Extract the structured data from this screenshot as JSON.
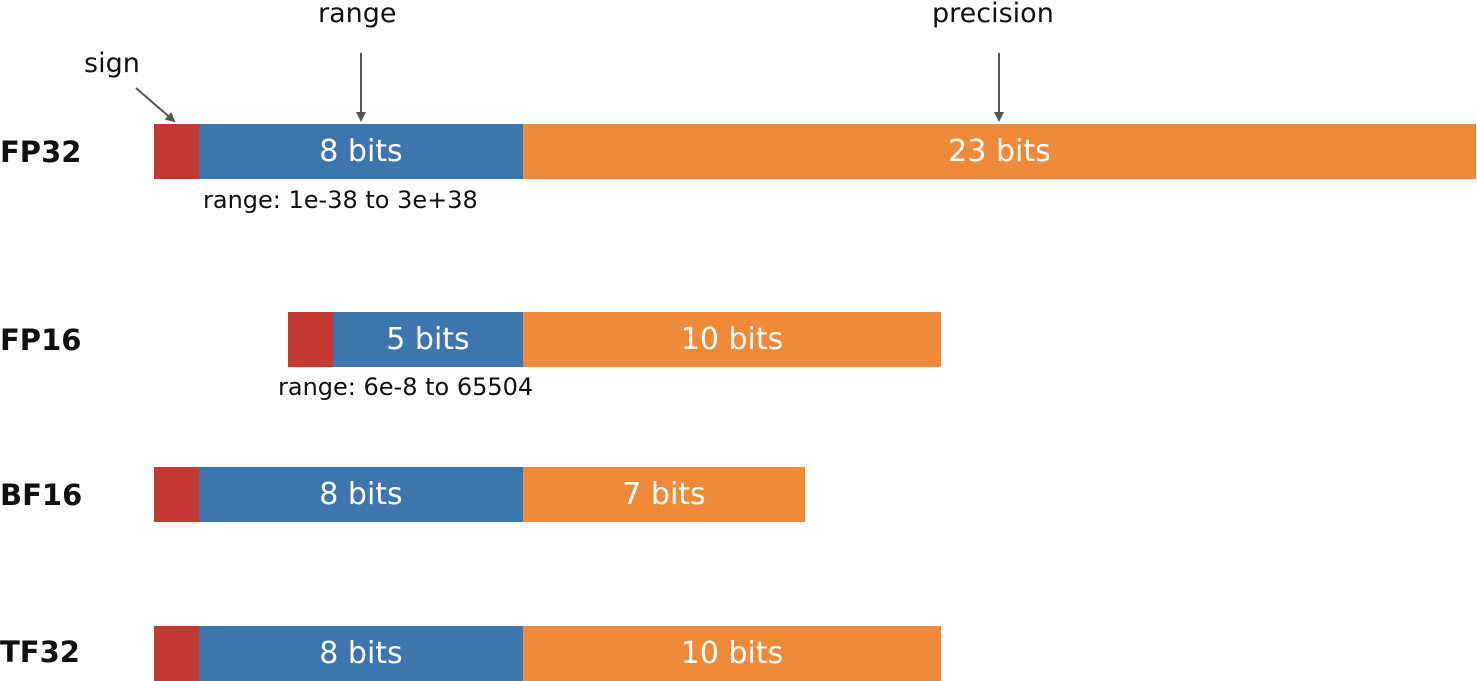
{
  "annotations": {
    "sign": "sign",
    "range": "range",
    "precision": "precision"
  },
  "colors": {
    "sign": "#c43a32",
    "exponent": "#3d76ae",
    "mantissa": "#ee8a39",
    "arrow": "#555555"
  },
  "formats": [
    {
      "name": "FP32",
      "exponent_label": "8 bits",
      "mantissa_label": "23 bits",
      "range_note": "range: 1e-38 to 3e+38"
    },
    {
      "name": "FP16",
      "exponent_label": "5 bits",
      "mantissa_label": "10 bits",
      "range_note": "range: 6e-8 to 65504"
    },
    {
      "name": "BF16",
      "exponent_label": "8 bits",
      "mantissa_label": "7 bits"
    },
    {
      "name": "TF32",
      "exponent_label": "8 bits",
      "mantissa_label": "10 bits"
    }
  ]
}
